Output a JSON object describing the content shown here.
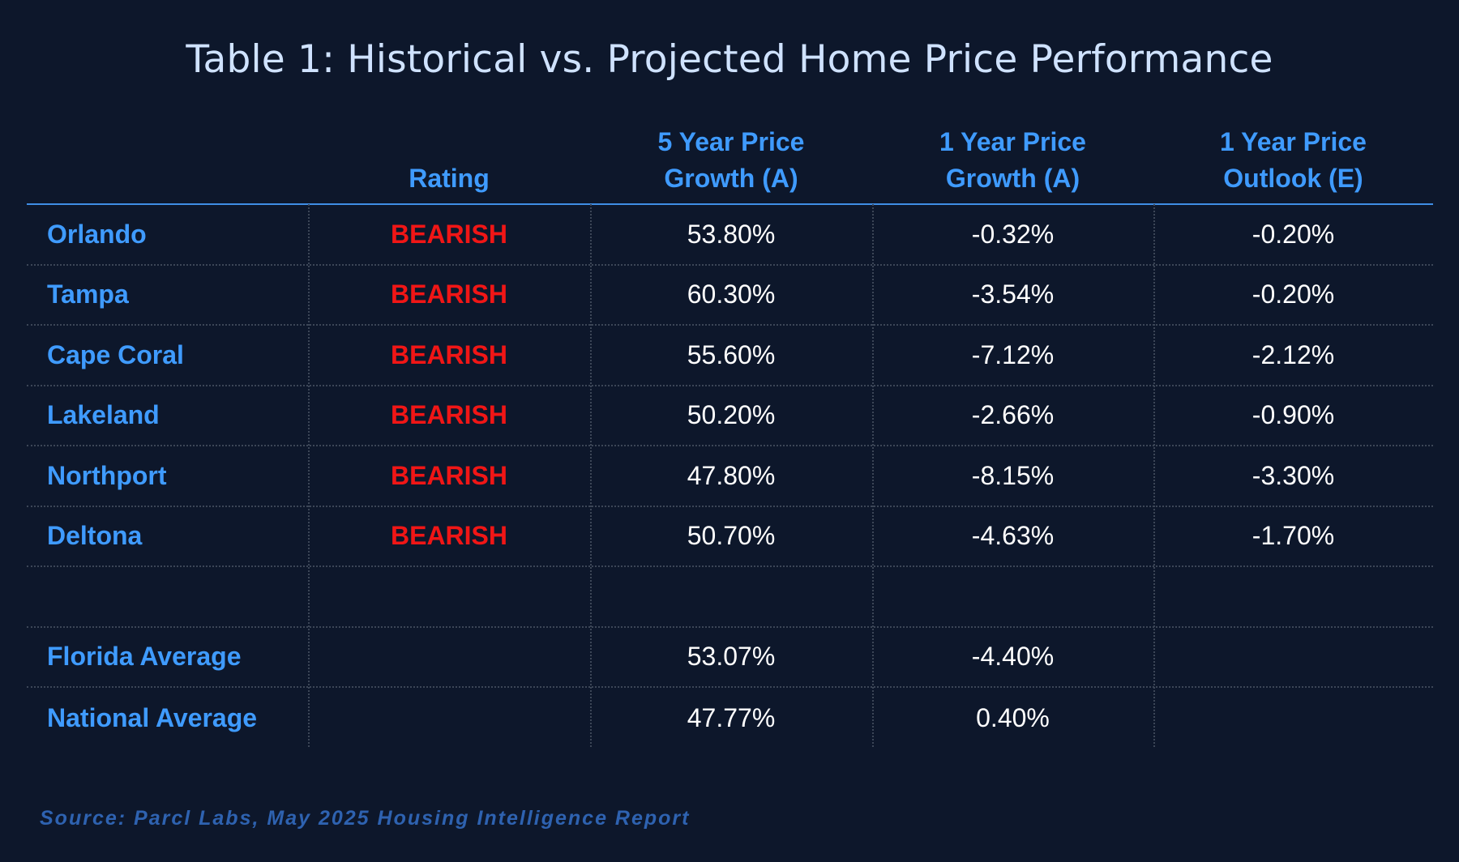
{
  "title": "Table 1: Historical vs. Projected Home Price Performance",
  "colors": {
    "background": "#0d172b",
    "title": "#cfe2ff",
    "header_accent": "#3f9bff",
    "bearish": "#f01616",
    "value_text": "#ffffff",
    "source_text": "#2e62b0"
  },
  "chart_data": {
    "type": "table",
    "columns": [
      {
        "line1": "",
        "line2": ""
      },
      {
        "line1": "",
        "line2": "Rating"
      },
      {
        "line1": "5 Year Price",
        "line2": "Growth (A)"
      },
      {
        "line1": "1 Year Price",
        "line2": "Growth (A)"
      },
      {
        "line1": "1 Year Price",
        "line2": "Outlook (E)"
      }
    ],
    "rows": [
      {
        "city": "Orlando",
        "rating": "BEARISH",
        "five_year": "53.80%",
        "one_year": "-0.32%",
        "outlook": "-0.20%"
      },
      {
        "city": "Tampa",
        "rating": "BEARISH",
        "five_year": "60.30%",
        "one_year": "-3.54%",
        "outlook": "-0.20%"
      },
      {
        "city": "Cape Coral",
        "rating": "BEARISH",
        "five_year": "55.60%",
        "one_year": "-7.12%",
        "outlook": "-2.12%"
      },
      {
        "city": "Lakeland",
        "rating": "BEARISH",
        "five_year": "50.20%",
        "one_year": "-2.66%",
        "outlook": "-0.90%"
      },
      {
        "city": "Northport",
        "rating": "BEARISH",
        "five_year": "47.80%",
        "one_year": "-8.15%",
        "outlook": "-3.30%"
      },
      {
        "city": "Deltona",
        "rating": "BEARISH",
        "five_year": "50.70%",
        "one_year": "-4.63%",
        "outlook": "-1.70%"
      },
      {
        "city": "",
        "rating": "",
        "five_year": "",
        "one_year": "",
        "outlook": ""
      },
      {
        "city": "Florida Average",
        "rating": "",
        "five_year": "53.07%",
        "one_year": "-4.40%",
        "outlook": ""
      },
      {
        "city": "National Average",
        "rating": "",
        "five_year": "47.77%",
        "one_year": "0.40%",
        "outlook": ""
      }
    ]
  },
  "source": "Source: Parcl Labs, May 2025 Housing Intelligence Report"
}
